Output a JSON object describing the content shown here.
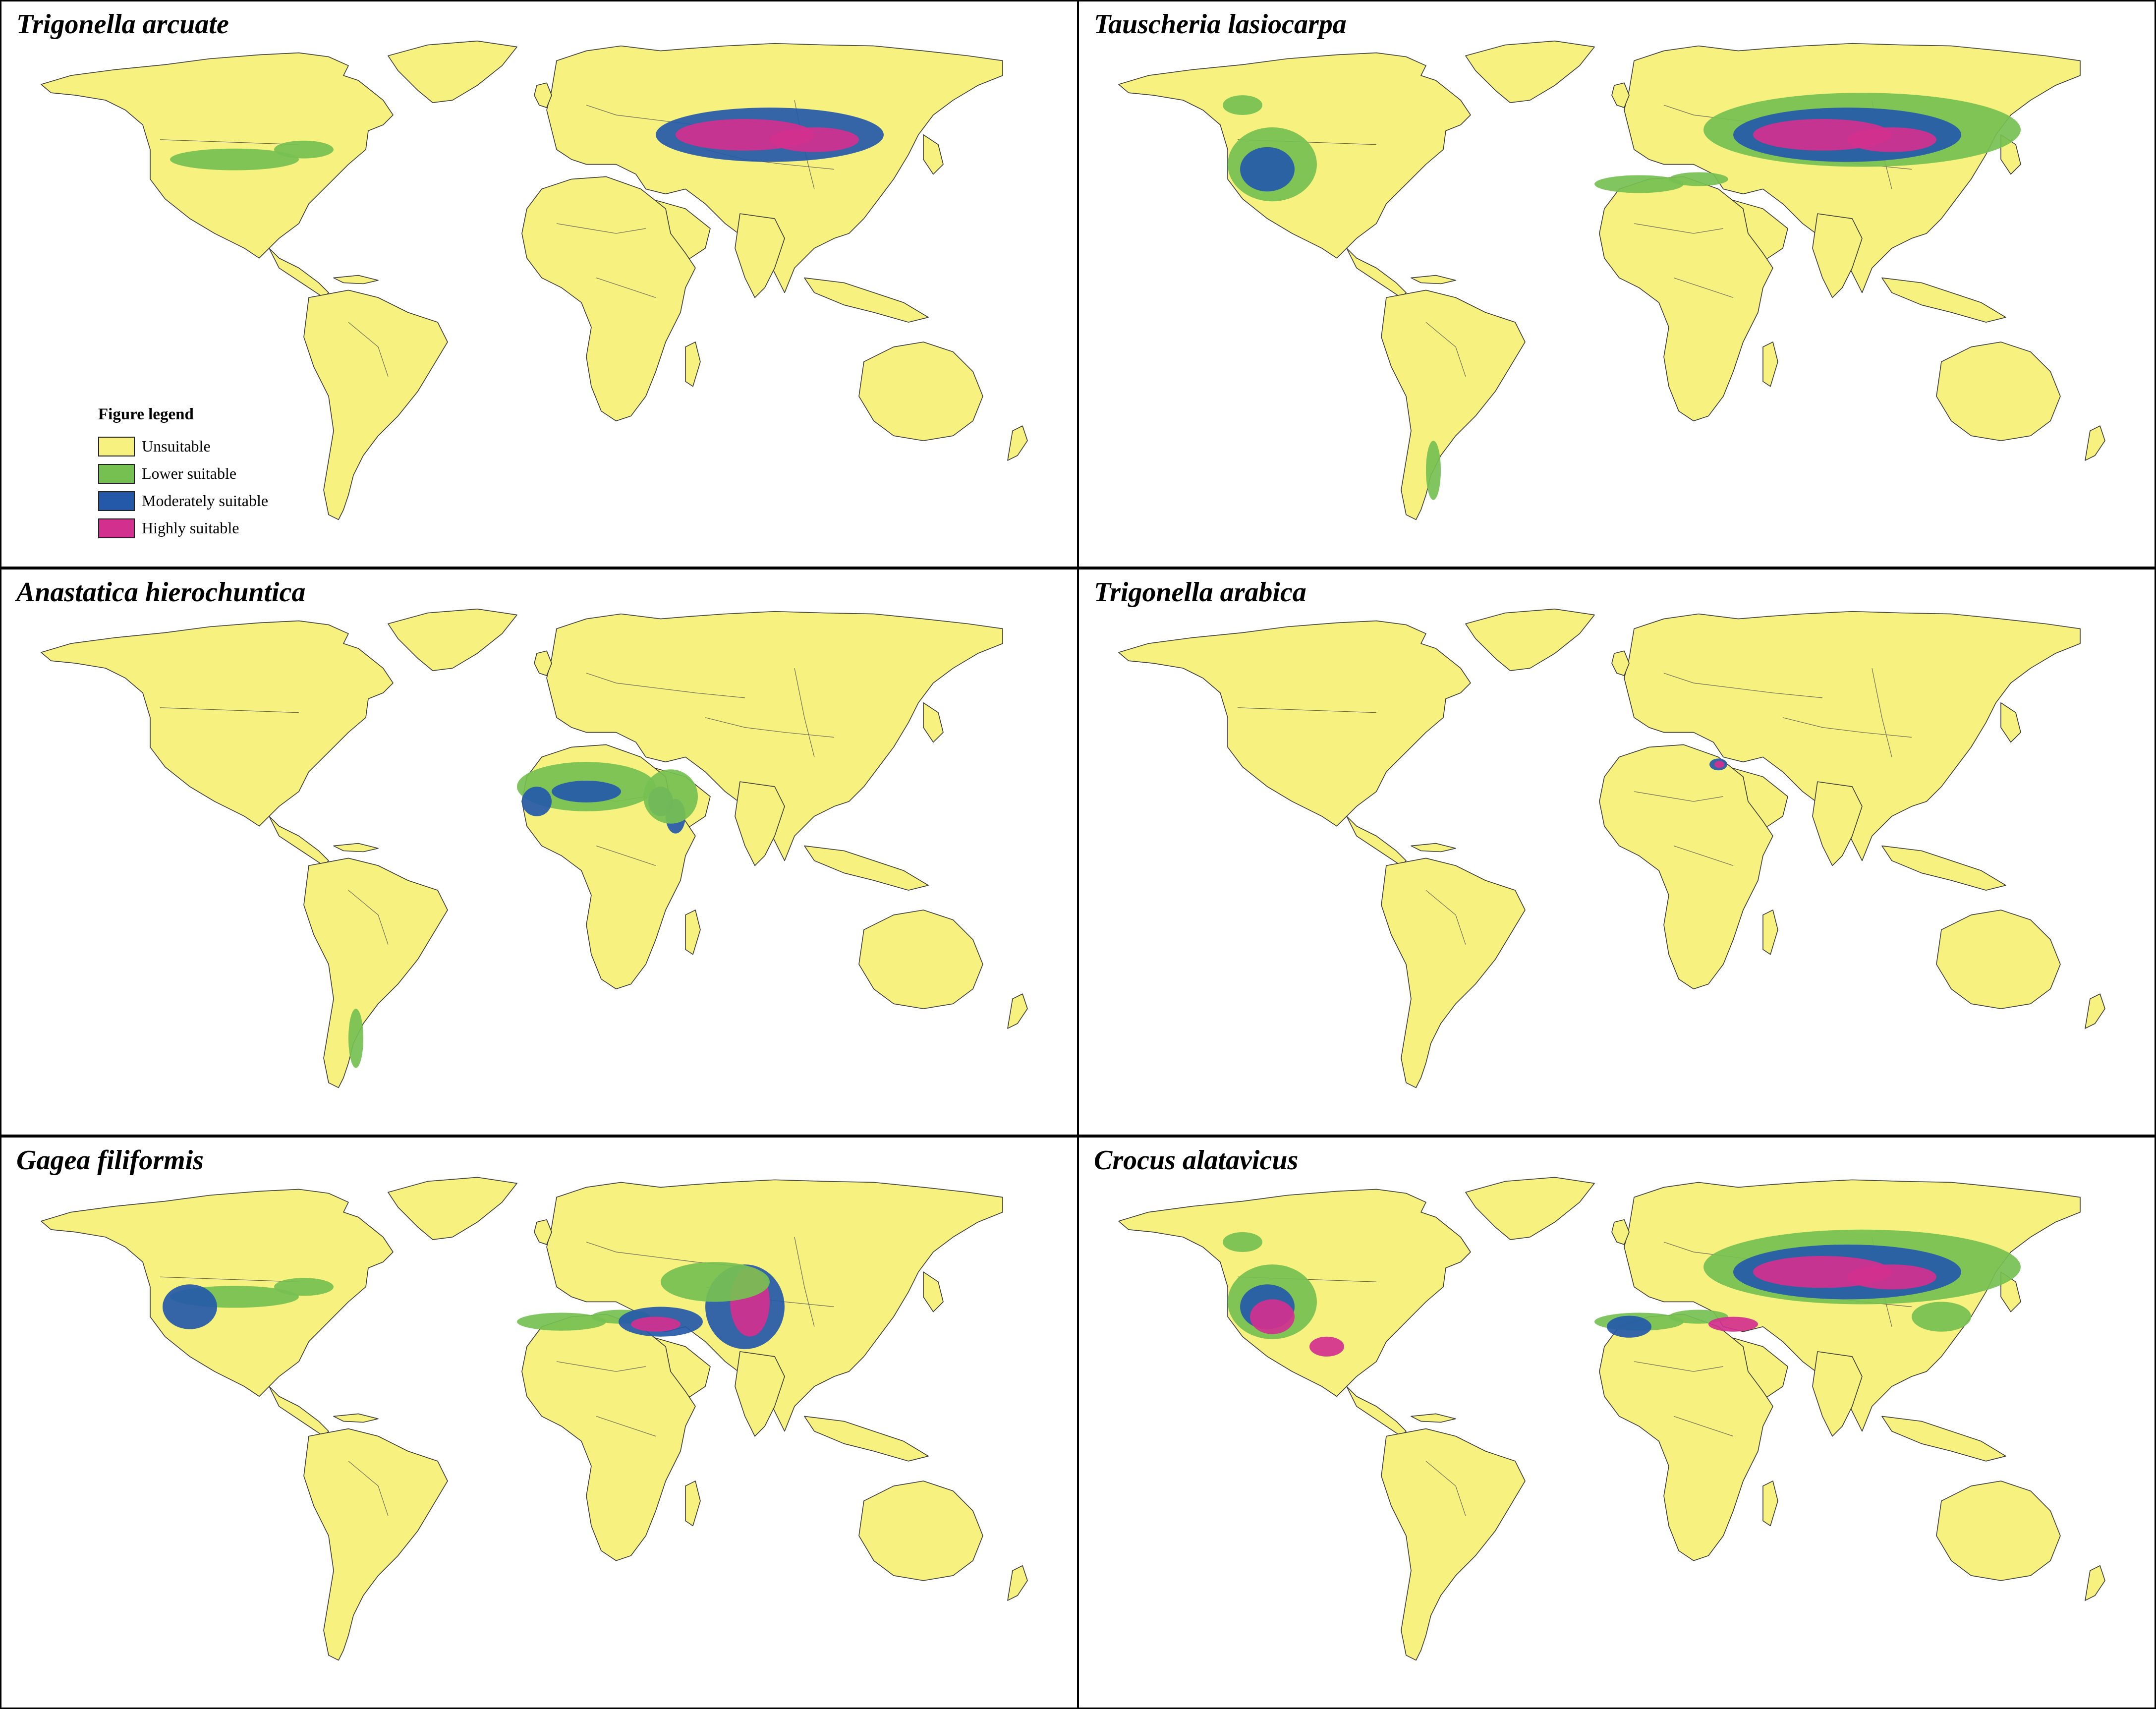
{
  "panels": [
    {
      "title": "Trigonella arcuate",
      "zones": [
        {
          "c": "low",
          "r": "na_north"
        },
        {
          "c": "mod",
          "r": "central_asia_band"
        },
        {
          "c": "high",
          "r": "central_asia_core"
        }
      ]
    },
    {
      "title": "Tauscheria lasiocarpa",
      "zones": [
        {
          "c": "low",
          "r": "na_west"
        },
        {
          "c": "mod",
          "r": "na_west_core"
        },
        {
          "c": "low",
          "r": "mediterranean"
        },
        {
          "c": "low",
          "r": "asia_wide"
        },
        {
          "c": "mod",
          "r": "central_asia_band"
        },
        {
          "c": "high",
          "r": "central_asia_core"
        },
        {
          "c": "low",
          "r": "andes_south"
        }
      ]
    },
    {
      "title": "Anastatica hierochuntica",
      "zones": [
        {
          "c": "low",
          "r": "north_africa"
        },
        {
          "c": "mod",
          "r": "north_africa_core"
        },
        {
          "c": "mod",
          "r": "arabia"
        },
        {
          "c": "low",
          "r": "arabia_outer"
        },
        {
          "c": "low",
          "r": "andes_south"
        }
      ]
    },
    {
      "title": "Trigonella arabica",
      "zones": [
        {
          "c": "mod",
          "r": "levant"
        },
        {
          "c": "high",
          "r": "levant_core"
        }
      ]
    },
    {
      "title": "Gagea filiformis",
      "zones": [
        {
          "c": "low",
          "r": "na_north"
        },
        {
          "c": "mod",
          "r": "na_west_core"
        },
        {
          "c": "low",
          "r": "mediterranean"
        },
        {
          "c": "mod",
          "r": "anatolia"
        },
        {
          "c": "high",
          "r": "anatolia_core"
        },
        {
          "c": "mod",
          "r": "central_asia_mtn"
        },
        {
          "c": "high",
          "r": "central_asia_mtn_core"
        },
        {
          "c": "low",
          "r": "caspian_band"
        }
      ]
    },
    {
      "title": "Crocus alatavicus",
      "zones": [
        {
          "c": "low",
          "r": "na_west"
        },
        {
          "c": "mod",
          "r": "na_west_core"
        },
        {
          "c": "high",
          "r": "na_rockies"
        },
        {
          "c": "low",
          "r": "mediterranean"
        },
        {
          "c": "mod",
          "r": "iberia"
        },
        {
          "c": "low",
          "r": "asia_wide"
        },
        {
          "c": "mod",
          "r": "central_asia_band"
        },
        {
          "c": "high",
          "r": "central_asia_core"
        },
        {
          "c": "high",
          "r": "anatolia_core"
        },
        {
          "c": "low",
          "r": "china_east"
        }
      ]
    }
  ],
  "legend": {
    "title": "Figure legend",
    "items": [
      {
        "label": "Unsuitable",
        "color": "#f7f27f"
      },
      {
        "label": "Lower suitable",
        "color": "#76c052"
      },
      {
        "label": "Moderately suitable",
        "color": "#2459a9"
      },
      {
        "label": "Highly suitable",
        "color": "#d1308e"
      }
    ]
  },
  "class_colors": {
    "low": "#76c052",
    "mod": "#2459a9",
    "high": "#d1308e"
  }
}
